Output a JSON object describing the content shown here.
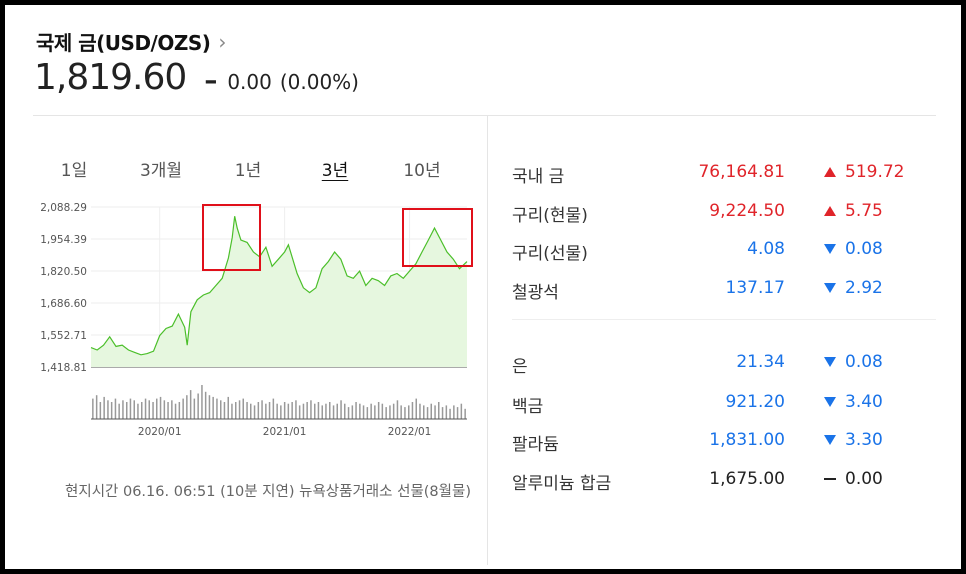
{
  "header": {
    "title": "국제 금(USD/OZS)",
    "price": "1,819.60",
    "change": "0.00",
    "change_pct": "(0.00%)"
  },
  "tabs": [
    "1일",
    "3개월",
    "1년",
    "3년",
    "10년"
  ],
  "active_tab": "3년",
  "footnote": "현지시간 06.16. 06:51 (10분 지연) 뉴욕상품거래소 선물(8월물)",
  "colors": {
    "up": "#e0242a",
    "down": "#1a73e8",
    "line": "#4bbf2a",
    "area": "#e6f7df",
    "highlight": "#e0101a"
  },
  "commodities": [
    {
      "name": "국내 금",
      "value": "76,164.81",
      "direction": "up",
      "diff": "519.72"
    },
    {
      "name": "구리(현물)",
      "value": "9,224.50",
      "direction": "up",
      "diff": "5.75"
    },
    {
      "name": "구리(선물)",
      "value": "4.08",
      "direction": "down",
      "diff": "0.08"
    },
    {
      "name": "철광석",
      "value": "137.17",
      "direction": "down",
      "diff": "2.92"
    },
    {
      "name": "은",
      "value": "21.34",
      "direction": "down",
      "diff": "0.08"
    },
    {
      "name": "백금",
      "value": "921.20",
      "direction": "down",
      "diff": "3.40"
    },
    {
      "name": "팔라듐",
      "value": "1,831.00",
      "direction": "down",
      "diff": "3.30"
    },
    {
      "name": "알루미늄 합금",
      "value": "1,675.00",
      "direction": "flat",
      "diff": "0.00"
    }
  ],
  "chart_data": {
    "type": "area",
    "y_ticks": [
      "2,088.29",
      "1,954.39",
      "1,820.50",
      "1,686.60",
      "1,552.71",
      "1,418.81"
    ],
    "ylim": [
      1418.81,
      2088.29
    ],
    "x_ticks": [
      "2020/01",
      "2021/01",
      "2022/01"
    ],
    "x_tick_positions": [
      2020.0,
      2021.0,
      2022.0
    ],
    "xlim": [
      2019.45,
      2022.46
    ],
    "grid": true,
    "series": [
      {
        "x": [
          2019.45,
          2019.5,
          2019.55,
          2019.6,
          2019.65,
          2019.7,
          2019.75,
          2019.8,
          2019.85,
          2019.9,
          2019.95,
          2020.0,
          2020.05,
          2020.1,
          2020.15,
          2020.2,
          2020.22,
          2020.25,
          2020.3,
          2020.35,
          2020.4,
          2020.45,
          2020.5,
          2020.55,
          2020.58,
          2020.6,
          2020.62,
          2020.65,
          2020.7,
          2020.75,
          2020.8,
          2020.85,
          2020.9,
          2020.95,
          2021.0,
          2021.03,
          2021.1,
          2021.15,
          2021.2,
          2021.25,
          2021.3,
          2021.35,
          2021.4,
          2021.45,
          2021.5,
          2021.55,
          2021.6,
          2021.65,
          2021.7,
          2021.75,
          2021.8,
          2021.85,
          2021.9,
          2021.95,
          2022.0,
          2022.05,
          2022.1,
          2022.15,
          2022.2,
          2022.25,
          2022.3,
          2022.35,
          2022.4,
          2022.46
        ],
        "y": [
          1500,
          1490,
          1510,
          1545,
          1505,
          1510,
          1490,
          1480,
          1470,
          1475,
          1485,
          1550,
          1580,
          1590,
          1640,
          1585,
          1510,
          1650,
          1700,
          1720,
          1730,
          1760,
          1790,
          1875,
          1960,
          2050,
          2000,
          1950,
          1940,
          1900,
          1880,
          1920,
          1840,
          1870,
          1900,
          1930,
          1810,
          1750,
          1730,
          1750,
          1830,
          1860,
          1900,
          1870,
          1800,
          1790,
          1820,
          1760,
          1790,
          1780,
          1760,
          1800,
          1810,
          1790,
          1820,
          1850,
          1900,
          1950,
          2000,
          1950,
          1900,
          1870,
          1830,
          1860
        ]
      }
    ],
    "volume": [
      0.6,
      0.7,
      0.5,
      0.65,
      0.55,
      0.5,
      0.6,
      0.45,
      0.55,
      0.5,
      0.6,
      0.55,
      0.45,
      0.5,
      0.6,
      0.55,
      0.5,
      0.6,
      0.65,
      0.55,
      0.5,
      0.55,
      0.45,
      0.5,
      0.6,
      0.7,
      0.85,
      0.6,
      0.75,
      1.0,
      0.8,
      0.7,
      0.65,
      0.6,
      0.55,
      0.5,
      0.65,
      0.45,
      0.5,
      0.55,
      0.6,
      0.5,
      0.45,
      0.4,
      0.5,
      0.55,
      0.45,
      0.5,
      0.6,
      0.45,
      0.4,
      0.5,
      0.45,
      0.5,
      0.55,
      0.4,
      0.45,
      0.5,
      0.55,
      0.45,
      0.5,
      0.4,
      0.45,
      0.5,
      0.4,
      0.45,
      0.55,
      0.45,
      0.35,
      0.4,
      0.5,
      0.45,
      0.4,
      0.35,
      0.45,
      0.4,
      0.5,
      0.45,
      0.35,
      0.4,
      0.45,
      0.55,
      0.4,
      0.35,
      0.4,
      0.5,
      0.6,
      0.45,
      0.4,
      0.35,
      0.45,
      0.4,
      0.5,
      0.35,
      0.4,
      0.3,
      0.4,
      0.35,
      0.45,
      0.3
    ]
  }
}
